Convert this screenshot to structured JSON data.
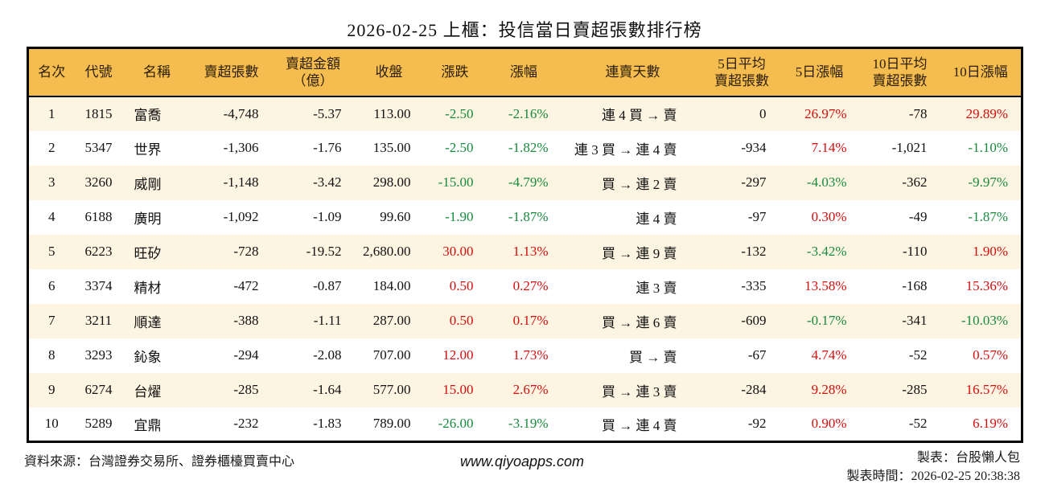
{
  "title": "2026-02-25 上櫃：投信當日賣超張數排行榜",
  "colors": {
    "header_bg": "#f5bd4f",
    "row_stripe": "#fdf5e2",
    "up_red": "#d40d0d",
    "down_green": "#178a3d",
    "border": "#000000"
  },
  "table": {
    "columns": [
      {
        "key": "rank",
        "label": "名次",
        "align": "center",
        "colored": false
      },
      {
        "key": "code",
        "label": "代號",
        "align": "center",
        "colored": false
      },
      {
        "key": "name",
        "label": "名稱",
        "align": "left",
        "colored": false
      },
      {
        "key": "net_sell",
        "label": "賣超張數",
        "align": "right",
        "colored": false
      },
      {
        "key": "amount",
        "label": "賣超金額\n（億）",
        "align": "right",
        "colored": false
      },
      {
        "key": "close",
        "label": "收盤",
        "align": "right",
        "colored": false
      },
      {
        "key": "change",
        "label": "漲跌",
        "align": "right",
        "colored": true
      },
      {
        "key": "chg_pct",
        "label": "漲幅",
        "align": "right",
        "colored": true
      },
      {
        "key": "streak",
        "label": "連賣天數",
        "align": "streak",
        "colored": false
      },
      {
        "key": "avg5",
        "label": "5日平均\n賣超張數",
        "align": "right",
        "colored": false
      },
      {
        "key": "chg5",
        "label": "5日漲幅",
        "align": "right",
        "colored": true
      },
      {
        "key": "avg10",
        "label": "10日平均\n賣超張數",
        "align": "right",
        "colored": false
      },
      {
        "key": "chg10",
        "label": "10日漲幅",
        "align": "right",
        "colored": true
      }
    ],
    "rows": [
      [
        "1",
        "1815",
        "富喬",
        "-4,748",
        "-5.37",
        "113.00",
        "-2.50",
        "-2.16%",
        "連 4 買 → 賣",
        "0",
        "26.97%",
        "-78",
        "29.89%"
      ],
      [
        "2",
        "5347",
        "世界",
        "-1,306",
        "-1.76",
        "135.00",
        "-2.50",
        "-1.82%",
        "連 3 買 → 連 4 賣",
        "-934",
        "7.14%",
        "-1,021",
        "-1.10%"
      ],
      [
        "3",
        "3260",
        "威剛",
        "-1,148",
        "-3.42",
        "298.00",
        "-15.00",
        "-4.79%",
        "買 → 連 2 賣",
        "-297",
        "-4.03%",
        "-362",
        "-9.97%"
      ],
      [
        "4",
        "6188",
        "廣明",
        "-1,092",
        "-1.09",
        "99.60",
        "-1.90",
        "-1.87%",
        "連 4 賣",
        "-97",
        "0.30%",
        "-49",
        "-1.87%"
      ],
      [
        "5",
        "6223",
        "旺矽",
        "-728",
        "-19.52",
        "2,680.00",
        "30.00",
        "1.13%",
        "買 → 連 9 賣",
        "-132",
        "-3.42%",
        "-110",
        "1.90%"
      ],
      [
        "6",
        "3374",
        "精材",
        "-472",
        "-0.87",
        "184.00",
        "0.50",
        "0.27%",
        "連 3 賣",
        "-335",
        "13.58%",
        "-168",
        "15.36%"
      ],
      [
        "7",
        "3211",
        "順達",
        "-388",
        "-1.11",
        "287.00",
        "0.50",
        "0.17%",
        "買 → 連 6 賣",
        "-609",
        "-0.17%",
        "-341",
        "-10.03%"
      ],
      [
        "8",
        "3293",
        "鈊象",
        "-294",
        "-2.08",
        "707.00",
        "12.00",
        "1.73%",
        "買 → 賣",
        "-67",
        "4.74%",
        "-52",
        "0.57%"
      ],
      [
        "9",
        "6274",
        "台燿",
        "-285",
        "-1.64",
        "577.00",
        "15.00",
        "2.67%",
        "買 → 連 3 賣",
        "-284",
        "9.28%",
        "-285",
        "16.57%"
      ],
      [
        "10",
        "5289",
        "宜鼎",
        "-232",
        "-1.83",
        "789.00",
        "-26.00",
        "-3.19%",
        "買 → 連 4 賣",
        "-92",
        "0.90%",
        "-52",
        "6.19%"
      ]
    ]
  },
  "footer": {
    "source": "資料來源：台灣證券交易所、證券櫃檯買賣中心",
    "website": "www.qiyoapps.com",
    "maker": "製表：台股懶人包",
    "made_at": "製表時間：2026-02-25 20:38:38"
  }
}
